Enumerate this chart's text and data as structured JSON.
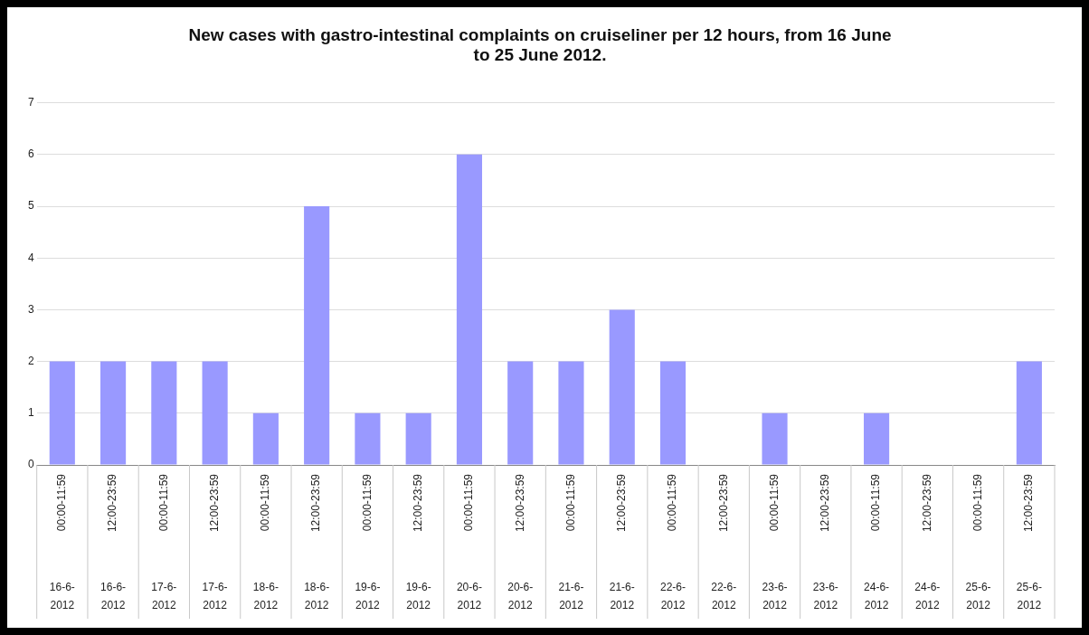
{
  "chart_data": {
    "type": "bar",
    "title": "New cases with gastro-intestinal complaints on cruiseliner per 12 hours, from 16 June to 25 June 2012.",
    "categories": [
      "00:00-11:59 16-6-2012",
      "12:00-23:59 16-6-2012",
      "00:00-11:59 17-6-2012",
      "12:00-23:59 17-6-2012",
      "00:00-11:59 18-6-2012",
      "12:00-23:59 18-6-2012",
      "00:00-11:59 19-6-2012",
      "12:00-23:59 19-6-2012",
      "00:00-11:59 20-6-2012",
      "12:00-23:59 20-6-2012",
      "00:00-11:59 21-6-2012",
      "12:00-23:59 21-6-2012",
      "00:00-11:59 22-6-2012",
      "12:00-23:59 22-6-2012",
      "00:00-11:59 23-6-2012",
      "12:00-23:59 23-6-2012",
      "00:00-11:59 24-6-2012",
      "12:00-23:59 24-6-2012",
      "00:00-11:59 25-6-2012",
      "12:00-23:59 25-6-2012"
    ],
    "values": [
      2,
      2,
      2,
      2,
      1,
      5,
      1,
      1,
      6,
      2,
      2,
      3,
      2,
      0,
      1,
      0,
      1,
      0,
      0,
      2
    ],
    "color": "#9999ff",
    "ylim": [
      0,
      7
    ],
    "yticks": [
      0,
      1,
      2,
      3,
      4,
      5,
      6,
      7
    ],
    "grid": "y"
  }
}
